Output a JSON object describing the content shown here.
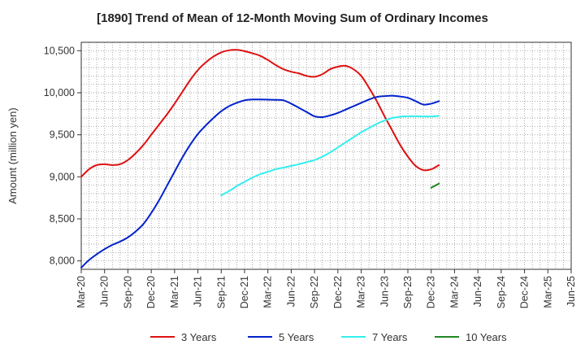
{
  "chart_data": {
    "type": "line",
    "title": "[1890]  Trend of Mean of 12-Month Moving Sum of Ordinary Incomes",
    "xlabel": "",
    "ylabel": "Amount (million yen)",
    "ylim": [
      7900,
      10600
    ],
    "yticks": [
      8000,
      8500,
      9000,
      9500,
      10000,
      10500
    ],
    "ytick_labels": [
      "8,000",
      "8,500",
      "9,000",
      "9,500",
      "10,000",
      "10,500"
    ],
    "xtick_labels": [
      "Mar-20",
      "Jun-20",
      "Sep-20",
      "Dec-20",
      "Mar-21",
      "Jun-21",
      "Sep-21",
      "Dec-21",
      "Mar-22",
      "Jun-22",
      "Sep-22",
      "Dec-22",
      "Mar-23",
      "Jun-23",
      "Sep-23",
      "Dec-23",
      "Mar-24",
      "Jun-24",
      "Sep-24",
      "Dec-24",
      "Mar-25",
      "Jun-25"
    ],
    "grid": true,
    "legend_position": "bottom",
    "series": [
      {
        "name": "3 Years",
        "color": "#dd1111",
        "points": [
          [
            0,
            9000
          ],
          [
            1,
            9090
          ],
          [
            2,
            9140
          ],
          [
            3,
            9150
          ],
          [
            4,
            9140
          ],
          [
            5,
            9150
          ],
          [
            6,
            9200
          ],
          [
            7,
            9280
          ],
          [
            8,
            9380
          ],
          [
            9,
            9500
          ],
          [
            10,
            9620
          ],
          [
            11,
            9740
          ],
          [
            12,
            9870
          ],
          [
            13,
            10010
          ],
          [
            14,
            10150
          ],
          [
            15,
            10270
          ],
          [
            16,
            10360
          ],
          [
            17,
            10430
          ],
          [
            18,
            10480
          ],
          [
            19,
            10505
          ],
          [
            20,
            10510
          ],
          [
            21,
            10495
          ],
          [
            22,
            10470
          ],
          [
            23,
            10440
          ],
          [
            24,
            10390
          ],
          [
            25,
            10330
          ],
          [
            26,
            10280
          ],
          [
            27,
            10250
          ],
          [
            28,
            10230
          ],
          [
            29,
            10200
          ],
          [
            30,
            10190
          ],
          [
            31,
            10220
          ],
          [
            32,
            10280
          ],
          [
            33,
            10310
          ],
          [
            34,
            10320
          ],
          [
            35,
            10280
          ],
          [
            36,
            10200
          ],
          [
            37,
            10060
          ],
          [
            38,
            9900
          ],
          [
            39,
            9720
          ],
          [
            40,
            9550
          ],
          [
            41,
            9380
          ],
          [
            42,
            9240
          ],
          [
            43,
            9130
          ],
          [
            44,
            9080
          ],
          [
            45,
            9090
          ],
          [
            46,
            9140
          ]
        ]
      },
      {
        "name": "5 Years",
        "color": "#0022cc",
        "points": [
          [
            0,
            7920
          ],
          [
            1,
            8010
          ],
          [
            2,
            8080
          ],
          [
            3,
            8140
          ],
          [
            4,
            8190
          ],
          [
            5,
            8230
          ],
          [
            6,
            8280
          ],
          [
            7,
            8350
          ],
          [
            8,
            8440
          ],
          [
            9,
            8570
          ],
          [
            10,
            8720
          ],
          [
            11,
            8890
          ],
          [
            12,
            9060
          ],
          [
            13,
            9230
          ],
          [
            14,
            9380
          ],
          [
            15,
            9510
          ],
          [
            16,
            9610
          ],
          [
            17,
            9700
          ],
          [
            18,
            9780
          ],
          [
            19,
            9840
          ],
          [
            20,
            9880
          ],
          [
            21,
            9910
          ],
          [
            22,
            9920
          ],
          [
            23,
            9920
          ],
          [
            24,
            9918
          ],
          [
            25,
            9915
          ],
          [
            26,
            9910
          ],
          [
            27,
            9870
          ],
          [
            28,
            9820
          ],
          [
            29,
            9770
          ],
          [
            30,
            9720
          ],
          [
            31,
            9710
          ],
          [
            32,
            9730
          ],
          [
            33,
            9760
          ],
          [
            34,
            9800
          ],
          [
            35,
            9840
          ],
          [
            36,
            9880
          ],
          [
            37,
            9920
          ],
          [
            38,
            9950
          ],
          [
            39,
            9960
          ],
          [
            40,
            9965
          ],
          [
            41,
            9955
          ],
          [
            42,
            9940
          ],
          [
            43,
            9900
          ],
          [
            44,
            9860
          ],
          [
            45,
            9870
          ],
          [
            46,
            9900
          ]
        ]
      },
      {
        "name": "7 Years",
        "color": "#33eeee",
        "points": [
          [
            18,
            8780
          ],
          [
            19,
            8830
          ],
          [
            20,
            8890
          ],
          [
            21,
            8940
          ],
          [
            22,
            8990
          ],
          [
            23,
            9030
          ],
          [
            24,
            9060
          ],
          [
            25,
            9090
          ],
          [
            26,
            9110
          ],
          [
            27,
            9130
          ],
          [
            28,
            9150
          ],
          [
            29,
            9175
          ],
          [
            30,
            9200
          ],
          [
            31,
            9240
          ],
          [
            32,
            9290
          ],
          [
            33,
            9350
          ],
          [
            34,
            9410
          ],
          [
            35,
            9470
          ],
          [
            36,
            9530
          ],
          [
            37,
            9580
          ],
          [
            38,
            9630
          ],
          [
            39,
            9670
          ],
          [
            40,
            9700
          ],
          [
            41,
            9715
          ],
          [
            42,
            9720
          ],
          [
            43,
            9720
          ],
          [
            44,
            9718
          ],
          [
            45,
            9718
          ],
          [
            46,
            9725
          ]
        ]
      },
      {
        "name": "10 Years",
        "color": "#228822",
        "points": [
          [
            45,
            8870
          ],
          [
            46,
            8920
          ]
        ]
      }
    ]
  }
}
